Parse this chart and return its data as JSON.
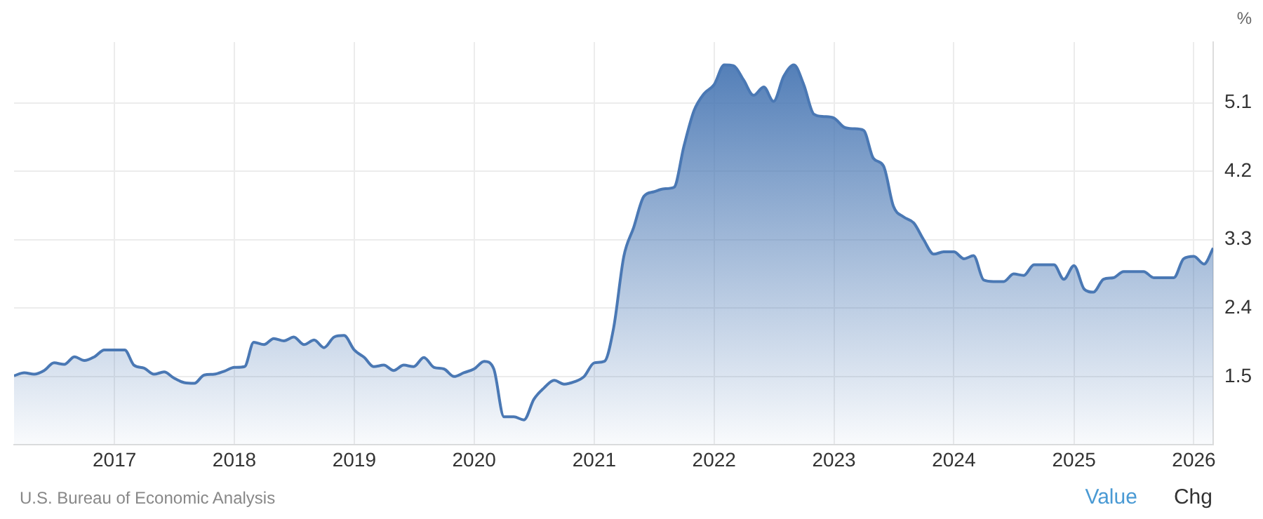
{
  "chart_data": {
    "type": "area",
    "ylabel": "%",
    "x": [
      "2016-03",
      "2016-04",
      "2016-05",
      "2016-06",
      "2016-07",
      "2016-08",
      "2016-09",
      "2016-10",
      "2016-11",
      "2016-12",
      "2017-01",
      "2017-02",
      "2017-03",
      "2017-04",
      "2017-05",
      "2017-06",
      "2017-07",
      "2017-08",
      "2017-09",
      "2017-10",
      "2017-11",
      "2017-12",
      "2018-01",
      "2018-02",
      "2018-03",
      "2018-04",
      "2018-05",
      "2018-06",
      "2018-07",
      "2018-08",
      "2018-09",
      "2018-10",
      "2018-11",
      "2018-12",
      "2019-01",
      "2019-02",
      "2019-03",
      "2019-04",
      "2019-05",
      "2019-06",
      "2019-07",
      "2019-08",
      "2019-09",
      "2019-10",
      "2019-11",
      "2019-12",
      "2020-01",
      "2020-02",
      "2020-03",
      "2020-04",
      "2020-05",
      "2020-06",
      "2020-07",
      "2020-08",
      "2020-09",
      "2020-10",
      "2020-11",
      "2020-12",
      "2021-01",
      "2021-02",
      "2021-03",
      "2021-04",
      "2021-05",
      "2021-06",
      "2021-07",
      "2021-08",
      "2021-09",
      "2021-10",
      "2021-11",
      "2021-12",
      "2022-01",
      "2022-02",
      "2022-03",
      "2022-04",
      "2022-05",
      "2022-06",
      "2022-07",
      "2022-08",
      "2022-09",
      "2022-10",
      "2022-11",
      "2022-12",
      "2023-01",
      "2023-02",
      "2023-03",
      "2023-04",
      "2023-05",
      "2023-06",
      "2023-07",
      "2023-08",
      "2023-09",
      "2023-10",
      "2023-11",
      "2023-12",
      "2024-01",
      "2024-02",
      "2024-03",
      "2024-04",
      "2024-05",
      "2024-06",
      "2024-07",
      "2024-08",
      "2024-09",
      "2024-10",
      "2024-11",
      "2024-12",
      "2025-01",
      "2025-02",
      "2025-03",
      "2025-04",
      "2025-05",
      "2025-06",
      "2025-07",
      "2025-08",
      "2025-09",
      "2025-10",
      "2025-11",
      "2025-12",
      "2026-01",
      "2026-02",
      "2026-03"
    ],
    "series": [
      {
        "color": "#4a78b4",
        "values": [
          1.51,
          1.55,
          1.53,
          1.58,
          1.68,
          1.66,
          1.76,
          1.71,
          1.76,
          1.85,
          1.85,
          1.85,
          1.65,
          1.61,
          1.53,
          1.56,
          1.48,
          1.42,
          1.41,
          1.52,
          1.53,
          1.57,
          1.62,
          1.63,
          1.95,
          1.92,
          2.0,
          1.97,
          2.02,
          1.92,
          1.98,
          1.88,
          2.02,
          2.04,
          1.85,
          1.75,
          1.63,
          1.65,
          1.58,
          1.65,
          1.63,
          1.75,
          1.62,
          1.6,
          1.5,
          1.55,
          1.6,
          1.7,
          1.6,
          0.97,
          0.97,
          0.93,
          1.2,
          1.35,
          1.45,
          1.4,
          1.43,
          1.5,
          1.68,
          1.7,
          2.14,
          3.08,
          3.46,
          3.87,
          3.93,
          3.97,
          3.99,
          4.53,
          5.0,
          5.22,
          5.34,
          5.6,
          5.59,
          5.4,
          5.2,
          5.31,
          5.12,
          5.45,
          5.6,
          5.34,
          4.95,
          4.92,
          4.9,
          4.78,
          4.76,
          4.74,
          4.37,
          4.27,
          3.74,
          3.6,
          3.52,
          3.3,
          3.11,
          3.14,
          3.14,
          3.05,
          3.09,
          2.77,
          2.75,
          2.75,
          2.85,
          2.83,
          2.97,
          2.97,
          2.97,
          2.78,
          2.96,
          2.65,
          2.61,
          2.78,
          2.8,
          2.88,
          2.88,
          2.88,
          2.8,
          2.8,
          2.8,
          3.05,
          3.08,
          2.98,
          3.19
        ]
      }
    ],
    "xlim": [
      "2016-03",
      "2026-03"
    ],
    "xticks": [
      "2017",
      "2018",
      "2019",
      "2020",
      "2021",
      "2022",
      "2023",
      "2024",
      "2025",
      "2026"
    ],
    "ylim": [
      0.6,
      5.9
    ],
    "yticks": [
      1.5,
      2.4,
      3.3,
      4.2,
      5.1
    ],
    "grid": true,
    "legend": false,
    "marker": "none",
    "line_style": "solid",
    "annotations": [
      "U.S. Bureau of Economic Analysis",
      "Value",
      "Chg"
    ]
  }
}
